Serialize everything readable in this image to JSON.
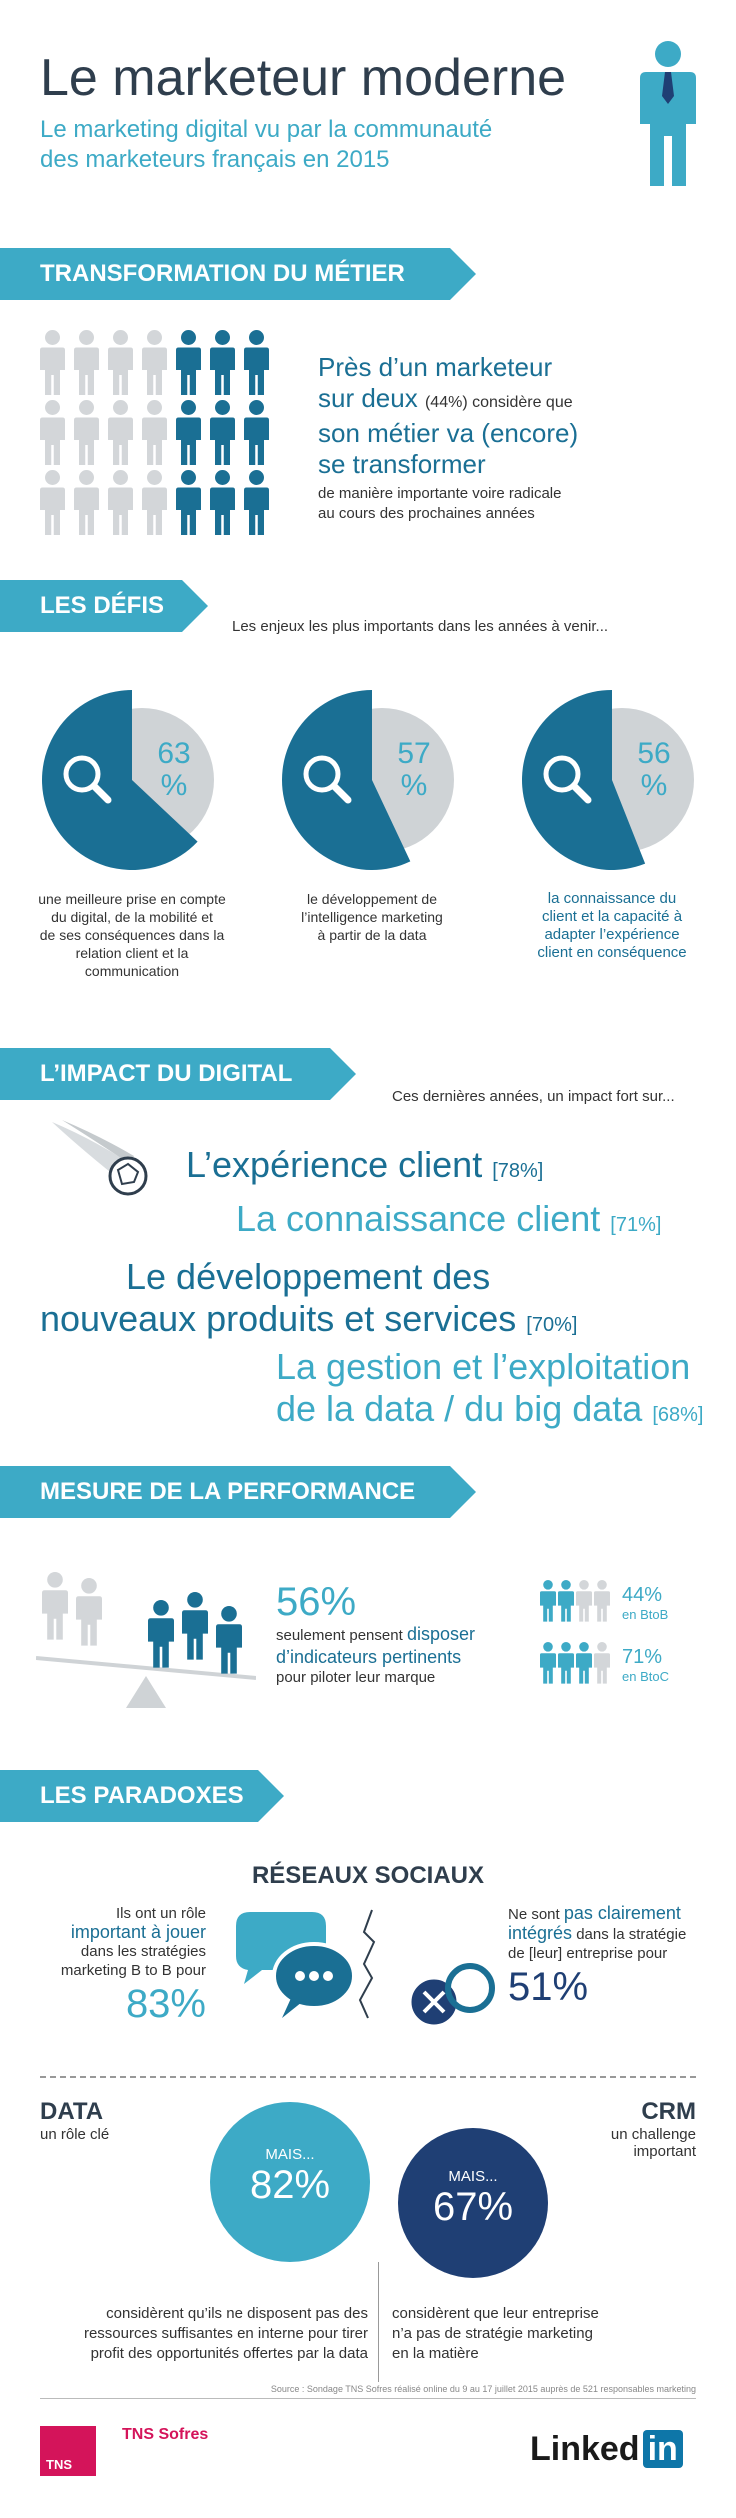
{
  "header": {
    "title": "Le marketeur moderne",
    "subtitle_line1": "Le marketing digital vu par la communauté",
    "subtitle_line2": "des marketeurs français en 2015"
  },
  "section1": {
    "label": "TRANSFORMATION DU MÉTIER",
    "text_big1": "Près d’un marketeur",
    "text_big2a": "sur deux",
    "text_small_pct": "(44%) considère que",
    "text_big3": "son métier va (encore)",
    "text_big4": "se transformer",
    "text_small1": "de manière importante voire radicale",
    "text_small2": "au cours des prochaines années",
    "people_fraction": 0.44
  },
  "section2": {
    "label": "LES DÉFIS",
    "intro": "Les enjeux les plus importants dans les années à venir...",
    "items": [
      {
        "pct": "63",
        "unit": "%",
        "icon": "magnifier-icon",
        "lines": [
          "une meilleure prise en compte",
          "du digital, de la mobilité et",
          "de ses conséquences dans la",
          "relation client et la",
          "communication"
        ],
        "highlight": "digital"
      },
      {
        "pct": "57",
        "unit": "%",
        "icon": "data-magnifier-icon",
        "lines": [
          "le développement de",
          "l’intelligence marketing",
          "à partir de la data"
        ],
        "highlight": "data"
      },
      {
        "pct": "56",
        "unit": "%",
        "icon": "customer-group-icon",
        "lines": [
          "la connaissance du",
          "client et la capacité à",
          "adapter l’expérience",
          "client en conséquence"
        ]
      }
    ]
  },
  "section3": {
    "label": "L’IMPACT DU DIGITAL",
    "intro": "Ces dernières années, un impact fort sur...",
    "items": [
      {
        "text": "L’expérience client",
        "pct": "[78%]"
      },
      {
        "text": "La connaissance client",
        "pct": "[71%]"
      },
      {
        "text1": "Le développement des",
        "text2": "nouveaux produits et services",
        "pct": "[70%]"
      },
      {
        "text1": "La gestion et l’exploitation",
        "text2": "de la data / du big data",
        "pct": "[68%]"
      }
    ]
  },
  "section4": {
    "label": "MESURE DE LA PERFORMANCE",
    "pct": "56%",
    "line1": "seulement pensent",
    "line1b": "disposer",
    "line2": "d’indicateurs pertinents",
    "line3": "pour piloter leur marque",
    "btob_pct": "44%",
    "btob_label": "en BtoB",
    "btoc_pct": "71%",
    "btoc_label": "en BtoC"
  },
  "section5": {
    "label": "LES PARADOXES",
    "social_title": "RÉSEAUX SOCIAUX",
    "left_l1a": "Ils ont un rôle",
    "left_l1b": "un rôle",
    "left_l2": "important à jouer",
    "left_l3": "dans les stratégies",
    "left_l4": "marketing B to B pour",
    "left_pct": "83%",
    "right_l1a": "Ne sont",
    "right_l1b": "pas clairement",
    "right_l2a": "intégrés",
    "right_l2b": "dans la stratégie",
    "right_l3": "de [leur] entreprise pour",
    "right_pct": "51%",
    "data_title": "DATA",
    "data_sub": "un rôle clé",
    "crm_title": "CRM",
    "crm_sub1": "un challenge",
    "crm_sub2": "important",
    "data_mais": "MAIS...",
    "data_pct": "82%",
    "crm_mais": "MAIS...",
    "crm_pct": "67%",
    "data_text": [
      "considèrent qu’ils ne disposent pas des",
      "ressources suffisantes en interne pour tirer",
      "profit des opportunités offertes par la data"
    ],
    "crm_text": [
      "considèrent que leur entreprise",
      "n’a pas de stratégie marketing",
      "en la matière"
    ]
  },
  "footer": {
    "source": "Source : Sondage TNS Sofres réalisé online du 9 au 17 juillet 2015 auprès de 521 responsables marketing",
    "tns_box": "TNS",
    "tns_name": "TNS Sofres",
    "linkedin_text": "Linked",
    "linkedin_in": "in"
  },
  "colors": {
    "accent": "#3daac6",
    "navy": "#1a6f94",
    "dark_navy": "#1f3f74",
    "grey": "#cfd3d6",
    "tns_pink": "#d4145a"
  }
}
